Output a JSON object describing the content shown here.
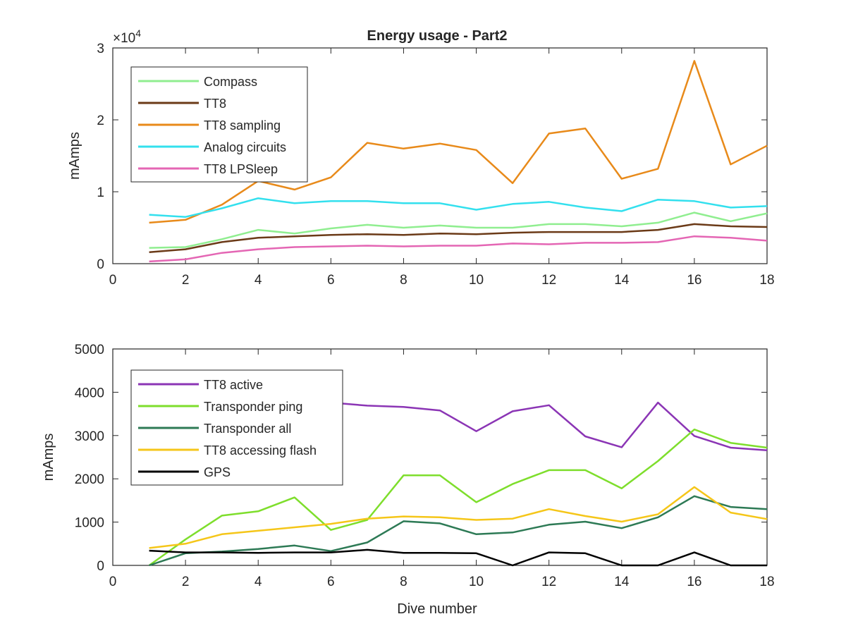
{
  "figure": {
    "title": "Energy usage - Part2",
    "xlabel": "Dive number"
  },
  "chart_data": [
    {
      "type": "line",
      "title": "Energy usage - Part2",
      "xlabel": "",
      "ylabel": "mAmps",
      "y_exponent_label": "×10",
      "y_exponent_power": "4",
      "xlim": [
        0,
        18
      ],
      "ylim": [
        0,
        30000
      ],
      "xticks": [
        0,
        2,
        4,
        6,
        8,
        10,
        12,
        14,
        16,
        18
      ],
      "yticks": [
        0,
        10000,
        20000,
        30000
      ],
      "ytick_labels": [
        "0",
        "1",
        "2",
        "3"
      ],
      "grid": false,
      "legend_position": "top-left",
      "x": [
        1,
        2,
        3,
        4,
        5,
        6,
        7,
        8,
        9,
        10,
        11,
        12,
        13,
        14,
        15,
        16,
        17,
        18
      ],
      "series": [
        {
          "name": "Compass",
          "color": "#90ee90",
          "values": [
            2200,
            2300,
            3400,
            4700,
            4200,
            4900,
            5400,
            5000,
            5300,
            5000,
            5000,
            5500,
            5500,
            5200,
            5700,
            7100,
            5900,
            7000
          ]
        },
        {
          "name": "TT8",
          "color": "#6b3a17",
          "values": [
            1600,
            2000,
            3000,
            3600,
            3800,
            4000,
            4100,
            4000,
            4200,
            4100,
            4300,
            4400,
            4400,
            4400,
            4700,
            5500,
            5200,
            5100
          ]
        },
        {
          "name": "TT8 sampling",
          "color": "#e88a1a",
          "values": [
            5700,
            6100,
            8200,
            11500,
            10300,
            12000,
            16800,
            16000,
            16700,
            15800,
            11200,
            18100,
            18800,
            11800,
            13200,
            28200,
            13800,
            16400
          ]
        },
        {
          "name": "Analog circuits",
          "color": "#33e0ee",
          "values": [
            6800,
            6500,
            7700,
            9100,
            8400,
            8700,
            8700,
            8400,
            8400,
            7500,
            8300,
            8600,
            7800,
            7300,
            8900,
            8700,
            7800,
            8000
          ]
        },
        {
          "name": "TT8 LPSleep",
          "color": "#e466b4",
          "values": [
            300,
            600,
            1500,
            2000,
            2300,
            2400,
            2500,
            2400,
            2500,
            2500,
            2800,
            2700,
            2900,
            2900,
            3000,
            3800,
            3600,
            3200
          ]
        }
      ]
    },
    {
      "type": "line",
      "title": "",
      "xlabel": "Dive number",
      "ylabel": "mAmps",
      "xlim": [
        0,
        18
      ],
      "ylim": [
        0,
        5000
      ],
      "xticks": [
        0,
        2,
        4,
        6,
        8,
        10,
        12,
        14,
        16,
        18
      ],
      "yticks": [
        0,
        1000,
        2000,
        3000,
        4000,
        5000
      ],
      "ytick_labels": [
        "0",
        "1000",
        "2000",
        "3000",
        "4000",
        "5000"
      ],
      "grid": false,
      "legend_position": "top-left",
      "x": [
        1,
        2,
        3,
        4,
        5,
        6,
        7,
        8,
        9,
        10,
        11,
        12,
        13,
        14,
        15,
        16,
        17,
        18
      ],
      "series": [
        {
          "name": "TT8 active",
          "color": "#8b35b5",
          "values": [
            3800,
            3780,
            3760,
            3750,
            3760,
            3760,
            3690,
            3660,
            3580,
            3100,
            3560,
            3700,
            2980,
            2730,
            3760,
            2990,
            2720,
            2660
          ]
        },
        {
          "name": "Transponder ping",
          "color": "#7ede2c",
          "values": [
            0,
            600,
            1150,
            1250,
            1570,
            820,
            1050,
            2080,
            2080,
            1460,
            1880,
            2200,
            2200,
            1780,
            2410,
            3140,
            2830,
            2720
          ]
        },
        {
          "name": "Transponder all",
          "color": "#2d7a55",
          "values": [
            0,
            280,
            320,
            380,
            460,
            330,
            530,
            1020,
            970,
            720,
            760,
            940,
            1010,
            860,
            1110,
            1600,
            1350,
            1300
          ]
        },
        {
          "name": "TT8 accessing flash",
          "color": "#f5c619",
          "values": [
            400,
            500,
            720,
            800,
            880,
            960,
            1080,
            1130,
            1110,
            1050,
            1080,
            1300,
            1140,
            1010,
            1180,
            1810,
            1220,
            1070
          ]
        },
        {
          "name": "GPS",
          "color": "#000000",
          "values": [
            340,
            300,
            300,
            290,
            300,
            300,
            360,
            290,
            290,
            280,
            0,
            300,
            280,
            0,
            0,
            300,
            0,
            0
          ]
        }
      ]
    }
  ]
}
